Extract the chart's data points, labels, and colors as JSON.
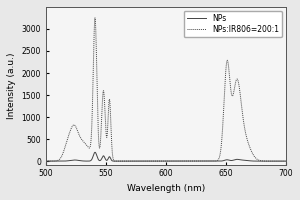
{
  "title": "",
  "xlabel": "Wavelength (nm)",
  "ylabel": "Intensity (a.u.)",
  "xlim": [
    500,
    700
  ],
  "ylim": [
    -80,
    3500
  ],
  "yticks": [
    0,
    500,
    1000,
    1500,
    2000,
    2500,
    3000
  ],
  "xticks": [
    500,
    550,
    600,
    650,
    700
  ],
  "legend": [
    "NPs",
    "NPs:IR806=200:1"
  ],
  "bg_color": "#f5f5f5",
  "fig_color": "#e8e8e8"
}
